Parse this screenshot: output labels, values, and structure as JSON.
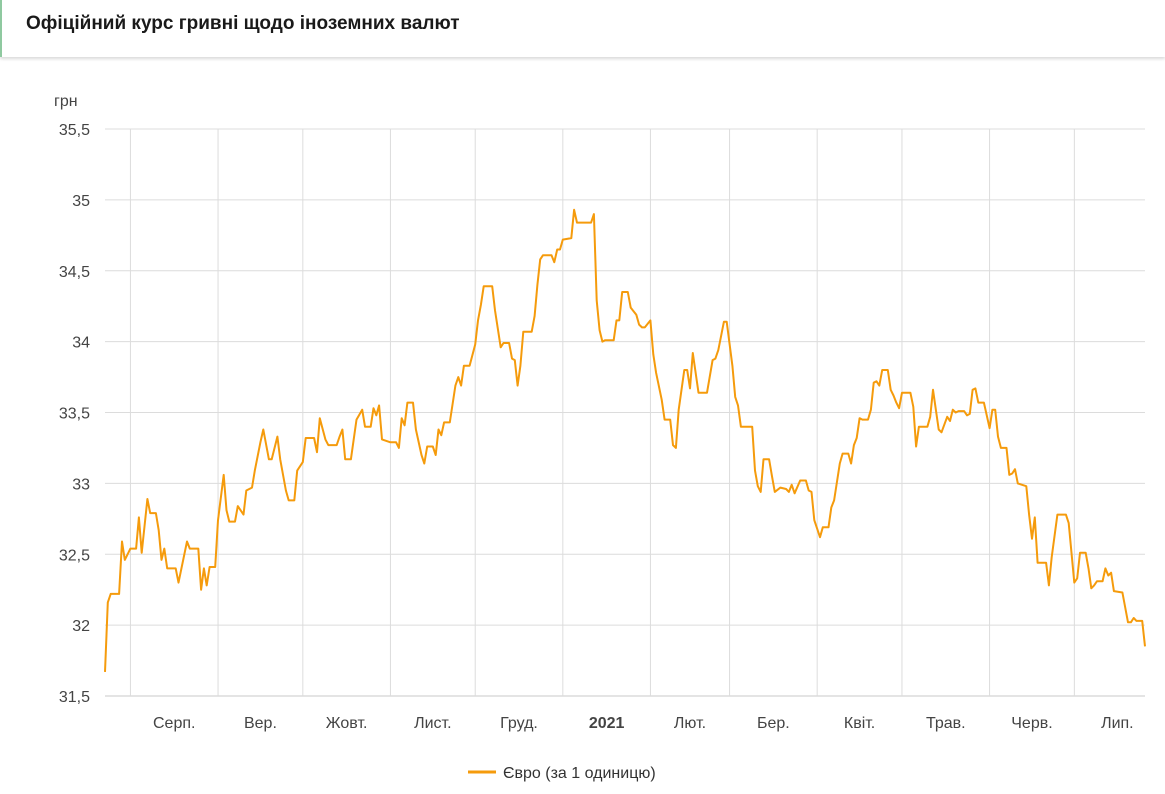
{
  "header": {
    "title": "Офіційний курс гривні щодо іноземних валют"
  },
  "chart_data": {
    "type": "line",
    "title": "",
    "ylabel": "грн",
    "xlabel": "",
    "ylim": [
      31.5,
      35.5
    ],
    "xlim": [
      "2020-07-23",
      "2021-07-26"
    ],
    "yticks": [
      31.5,
      32,
      32.5,
      33,
      33.5,
      34,
      34.5,
      35,
      35.5
    ],
    "ytick_labels": [
      "31,5",
      "32",
      "32,5",
      "33",
      "33,5",
      "34",
      "34,5",
      "35",
      "35,5"
    ],
    "xticks": [
      {
        "date": "2020-08-01",
        "label": "Серп.",
        "bold": false
      },
      {
        "date": "2020-09-01",
        "label": "Вер.",
        "bold": false
      },
      {
        "date": "2020-10-01",
        "label": "Жовт.",
        "bold": false
      },
      {
        "date": "2020-11-01",
        "label": "Лист.",
        "bold": false
      },
      {
        "date": "2020-12-01",
        "label": "Груд.",
        "bold": false
      },
      {
        "date": "2021-01-01",
        "label": "2021",
        "bold": true
      },
      {
        "date": "2021-02-01",
        "label": "Лют.",
        "bold": false
      },
      {
        "date": "2021-03-01",
        "label": "Бер.",
        "bold": false
      },
      {
        "date": "2021-04-01",
        "label": "Квіт.",
        "bold": false
      },
      {
        "date": "2021-05-01",
        "label": "Трав.",
        "bold": false
      },
      {
        "date": "2021-06-01",
        "label": "Черв.",
        "bold": false
      },
      {
        "date": "2021-07-01",
        "label": "Лип.",
        "bold": false
      }
    ],
    "grid": true,
    "legend_position": "bottom",
    "series": [
      {
        "name": "Євро (за 1 одиницю)",
        "color": "#f59b0c",
        "points": [
          [
            "2020-07-23",
            31.67
          ],
          [
            "2020-07-24",
            32.16
          ],
          [
            "2020-07-25",
            32.22
          ],
          [
            "2020-07-28",
            32.22
          ],
          [
            "2020-07-29",
            32.59
          ],
          [
            "2020-07-30",
            32.46
          ],
          [
            "2020-08-01",
            32.54
          ],
          [
            "2020-08-03",
            32.54
          ],
          [
            "2020-08-04",
            32.76
          ],
          [
            "2020-08-05",
            32.51
          ],
          [
            "2020-08-07",
            32.89
          ],
          [
            "2020-08-08",
            32.79
          ],
          [
            "2020-08-10",
            32.79
          ],
          [
            "2020-08-11",
            32.67
          ],
          [
            "2020-08-12",
            32.46
          ],
          [
            "2020-08-13",
            32.54
          ],
          [
            "2020-08-14",
            32.4
          ],
          [
            "2020-08-17",
            32.4
          ],
          [
            "2020-08-18",
            32.3
          ],
          [
            "2020-08-21",
            32.59
          ],
          [
            "2020-08-22",
            32.54
          ],
          [
            "2020-08-25",
            32.54
          ],
          [
            "2020-08-26",
            32.25
          ],
          [
            "2020-08-27",
            32.4
          ],
          [
            "2020-08-28",
            32.28
          ],
          [
            "2020-08-29",
            32.41
          ],
          [
            "2020-08-31",
            32.41
          ],
          [
            "2020-09-01",
            32.74
          ],
          [
            "2020-09-03",
            33.06
          ],
          [
            "2020-09-04",
            32.81
          ],
          [
            "2020-09-05",
            32.73
          ],
          [
            "2020-09-07",
            32.73
          ],
          [
            "2020-09-08",
            32.84
          ],
          [
            "2020-09-10",
            32.78
          ],
          [
            "2020-09-11",
            32.95
          ],
          [
            "2020-09-13",
            32.97
          ],
          [
            "2020-09-14",
            33.09
          ],
          [
            "2020-09-16",
            33.29
          ],
          [
            "2020-09-17",
            33.38
          ],
          [
            "2020-09-19",
            33.17
          ],
          [
            "2020-09-20",
            33.17
          ],
          [
            "2020-09-22",
            33.33
          ],
          [
            "2020-09-23",
            33.17
          ],
          [
            "2020-09-25",
            32.95
          ],
          [
            "2020-09-26",
            32.88
          ],
          [
            "2020-09-28",
            32.88
          ],
          [
            "2020-09-29",
            33.09
          ],
          [
            "2020-10-01",
            33.15
          ],
          [
            "2020-10-02",
            33.32
          ],
          [
            "2020-10-05",
            33.32
          ],
          [
            "2020-10-06",
            33.22
          ],
          [
            "2020-10-07",
            33.46
          ],
          [
            "2020-10-09",
            33.31
          ],
          [
            "2020-10-10",
            33.27
          ],
          [
            "2020-10-13",
            33.27
          ],
          [
            "2020-10-14",
            33.33
          ],
          [
            "2020-10-15",
            33.38
          ],
          [
            "2020-10-16",
            33.17
          ],
          [
            "2020-10-18",
            33.17
          ],
          [
            "2020-10-20",
            33.45
          ],
          [
            "2020-10-22",
            33.52
          ],
          [
            "2020-10-23",
            33.4
          ],
          [
            "2020-10-25",
            33.4
          ],
          [
            "2020-10-26",
            33.53
          ],
          [
            "2020-10-27",
            33.48
          ],
          [
            "2020-10-28",
            33.55
          ],
          [
            "2020-10-29",
            33.31
          ],
          [
            "2020-11-01",
            33.29
          ],
          [
            "2020-11-03",
            33.29
          ],
          [
            "2020-11-04",
            33.25
          ],
          [
            "2020-11-05",
            33.46
          ],
          [
            "2020-11-06",
            33.41
          ],
          [
            "2020-11-07",
            33.57
          ],
          [
            "2020-11-09",
            33.57
          ],
          [
            "2020-11-10",
            33.38
          ],
          [
            "2020-11-12",
            33.2
          ],
          [
            "2020-11-13",
            33.14
          ],
          [
            "2020-11-14",
            33.26
          ],
          [
            "2020-11-16",
            33.26
          ],
          [
            "2020-11-17",
            33.2
          ],
          [
            "2020-11-18",
            33.38
          ],
          [
            "2020-11-19",
            33.34
          ],
          [
            "2020-11-20",
            33.43
          ],
          [
            "2020-11-22",
            33.43
          ],
          [
            "2020-11-24",
            33.69
          ],
          [
            "2020-11-25",
            33.75
          ],
          [
            "2020-11-26",
            33.69
          ],
          [
            "2020-11-27",
            33.83
          ],
          [
            "2020-11-29",
            33.83
          ],
          [
            "2020-12-01",
            33.98
          ],
          [
            "2020-12-02",
            34.15
          ],
          [
            "2020-12-03",
            34.26
          ],
          [
            "2020-12-04",
            34.39
          ],
          [
            "2020-12-07",
            34.39
          ],
          [
            "2020-12-08",
            34.22
          ],
          [
            "2020-12-10",
            33.96
          ],
          [
            "2020-12-11",
            33.99
          ],
          [
            "2020-12-13",
            33.99
          ],
          [
            "2020-12-14",
            33.88
          ],
          [
            "2020-12-15",
            33.87
          ],
          [
            "2020-12-16",
            33.69
          ],
          [
            "2020-12-17",
            33.83
          ],
          [
            "2020-12-18",
            34.07
          ],
          [
            "2020-12-21",
            34.07
          ],
          [
            "2020-12-22",
            34.18
          ],
          [
            "2020-12-23",
            34.4
          ],
          [
            "2020-12-24",
            34.58
          ],
          [
            "2020-12-25",
            34.61
          ],
          [
            "2020-12-28",
            34.61
          ],
          [
            "2020-12-29",
            34.56
          ],
          [
            "2020-12-30",
            34.65
          ],
          [
            "2020-12-31",
            34.65
          ],
          [
            "2021-01-01",
            34.72
          ],
          [
            "2021-01-04",
            34.73
          ],
          [
            "2021-01-05",
            34.93
          ],
          [
            "2021-01-06",
            34.84
          ],
          [
            "2021-01-11",
            34.84
          ],
          [
            "2021-01-12",
            34.9
          ],
          [
            "2021-01-13",
            34.29
          ],
          [
            "2021-01-14",
            34.08
          ],
          [
            "2021-01-15",
            34.0
          ],
          [
            "2021-01-16",
            34.01
          ],
          [
            "2021-01-19",
            34.01
          ],
          [
            "2021-01-20",
            34.15
          ],
          [
            "2021-01-21",
            34.15
          ],
          [
            "2021-01-22",
            34.35
          ],
          [
            "2021-01-24",
            34.35
          ],
          [
            "2021-01-25",
            34.24
          ],
          [
            "2021-01-27",
            34.19
          ],
          [
            "2021-01-28",
            34.12
          ],
          [
            "2021-01-29",
            34.1
          ],
          [
            "2021-01-30",
            34.1
          ],
          [
            "2021-02-01",
            34.15
          ],
          [
            "2021-02-02",
            33.91
          ],
          [
            "2021-02-03",
            33.78
          ],
          [
            "2021-02-05",
            33.59
          ],
          [
            "2021-02-06",
            33.45
          ],
          [
            "2021-02-08",
            33.45
          ],
          [
            "2021-02-09",
            33.27
          ],
          [
            "2021-02-10",
            33.25
          ],
          [
            "2021-02-11",
            33.52
          ],
          [
            "2021-02-13",
            33.8
          ],
          [
            "2021-02-14",
            33.8
          ],
          [
            "2021-02-15",
            33.67
          ],
          [
            "2021-02-16",
            33.92
          ],
          [
            "2021-02-18",
            33.64
          ],
          [
            "2021-02-21",
            33.64
          ],
          [
            "2021-02-23",
            33.87
          ],
          [
            "2021-02-24",
            33.88
          ],
          [
            "2021-02-25",
            33.94
          ],
          [
            "2021-02-27",
            34.14
          ],
          [
            "2021-02-28",
            34.14
          ],
          [
            "2021-03-02",
            33.83
          ],
          [
            "2021-03-03",
            33.61
          ],
          [
            "2021-03-04",
            33.55
          ],
          [
            "2021-03-05",
            33.4
          ],
          [
            "2021-03-09",
            33.4
          ],
          [
            "2021-03-10",
            33.09
          ],
          [
            "2021-03-11",
            32.98
          ],
          [
            "2021-03-12",
            32.94
          ],
          [
            "2021-03-13",
            33.17
          ],
          [
            "2021-03-15",
            33.17
          ],
          [
            "2021-03-16",
            33.05
          ],
          [
            "2021-03-17",
            32.94
          ],
          [
            "2021-03-19",
            32.97
          ],
          [
            "2021-03-21",
            32.96
          ],
          [
            "2021-03-22",
            32.94
          ],
          [
            "2021-03-23",
            32.99
          ],
          [
            "2021-03-24",
            32.93
          ],
          [
            "2021-03-26",
            33.02
          ],
          [
            "2021-03-28",
            33.02
          ],
          [
            "2021-03-29",
            32.95
          ],
          [
            "2021-03-30",
            32.94
          ],
          [
            "2021-03-31",
            32.74
          ],
          [
            "2021-04-02",
            32.62
          ],
          [
            "2021-04-03",
            32.69
          ],
          [
            "2021-04-05",
            32.69
          ],
          [
            "2021-04-06",
            32.83
          ],
          [
            "2021-04-07",
            32.88
          ],
          [
            "2021-04-09",
            33.14
          ],
          [
            "2021-04-10",
            33.21
          ],
          [
            "2021-04-12",
            33.21
          ],
          [
            "2021-04-13",
            33.14
          ],
          [
            "2021-04-14",
            33.27
          ],
          [
            "2021-04-15",
            33.32
          ],
          [
            "2021-04-16",
            33.46
          ],
          [
            "2021-04-17",
            33.45
          ],
          [
            "2021-04-19",
            33.45
          ],
          [
            "2021-04-20",
            33.52
          ],
          [
            "2021-04-21",
            33.71
          ],
          [
            "2021-04-22",
            33.72
          ],
          [
            "2021-04-23",
            33.69
          ],
          [
            "2021-04-24",
            33.8
          ],
          [
            "2021-04-26",
            33.8
          ],
          [
            "2021-04-27",
            33.66
          ],
          [
            "2021-04-28",
            33.62
          ],
          [
            "2021-04-29",
            33.57
          ],
          [
            "2021-04-30",
            33.53
          ],
          [
            "2021-05-01",
            33.64
          ],
          [
            "2021-05-04",
            33.64
          ],
          [
            "2021-05-05",
            33.54
          ],
          [
            "2021-05-06",
            33.26
          ],
          [
            "2021-05-07",
            33.4
          ],
          [
            "2021-05-10",
            33.4
          ],
          [
            "2021-05-11",
            33.47
          ],
          [
            "2021-05-12",
            33.66
          ],
          [
            "2021-05-14",
            33.38
          ],
          [
            "2021-05-15",
            33.36
          ],
          [
            "2021-05-17",
            33.47
          ],
          [
            "2021-05-18",
            33.44
          ],
          [
            "2021-05-19",
            33.52
          ],
          [
            "2021-05-20",
            33.5
          ],
          [
            "2021-05-21",
            33.51
          ],
          [
            "2021-05-23",
            33.51
          ],
          [
            "2021-05-24",
            33.48
          ],
          [
            "2021-05-25",
            33.49
          ],
          [
            "2021-05-26",
            33.66
          ],
          [
            "2021-05-27",
            33.67
          ],
          [
            "2021-05-28",
            33.57
          ],
          [
            "2021-05-30",
            33.57
          ],
          [
            "2021-06-01",
            33.39
          ],
          [
            "2021-06-02",
            33.52
          ],
          [
            "2021-06-03",
            33.52
          ],
          [
            "2021-06-04",
            33.33
          ],
          [
            "2021-06-05",
            33.25
          ],
          [
            "2021-06-07",
            33.25
          ],
          [
            "2021-06-08",
            33.06
          ],
          [
            "2021-06-09",
            33.07
          ],
          [
            "2021-06-10",
            33.1
          ],
          [
            "2021-06-11",
            33.0
          ],
          [
            "2021-06-14",
            32.98
          ],
          [
            "2021-06-15",
            32.78
          ],
          [
            "2021-06-16",
            32.61
          ],
          [
            "2021-06-17",
            32.76
          ],
          [
            "2021-06-18",
            32.44
          ],
          [
            "2021-06-21",
            32.44
          ],
          [
            "2021-06-22",
            32.28
          ],
          [
            "2021-06-23",
            32.48
          ],
          [
            "2021-06-25",
            32.78
          ],
          [
            "2021-06-28",
            32.78
          ],
          [
            "2021-06-29",
            32.72
          ],
          [
            "2021-07-01",
            32.3
          ],
          [
            "2021-07-02",
            32.33
          ],
          [
            "2021-07-03",
            32.51
          ],
          [
            "2021-07-05",
            32.51
          ],
          [
            "2021-07-06",
            32.4
          ],
          [
            "2021-07-07",
            32.26
          ],
          [
            "2021-07-08",
            32.28
          ],
          [
            "2021-07-09",
            32.31
          ],
          [
            "2021-07-11",
            32.31
          ],
          [
            "2021-07-12",
            32.4
          ],
          [
            "2021-07-13",
            32.35
          ],
          [
            "2021-07-14",
            32.37
          ],
          [
            "2021-07-15",
            32.24
          ],
          [
            "2021-07-18",
            32.23
          ],
          [
            "2021-07-20",
            32.02
          ],
          [
            "2021-07-21",
            32.02
          ],
          [
            "2021-07-22",
            32.05
          ],
          [
            "2021-07-23",
            32.03
          ],
          [
            "2021-07-25",
            32.03
          ],
          [
            "2021-07-26",
            31.85
          ]
        ]
      }
    ]
  }
}
